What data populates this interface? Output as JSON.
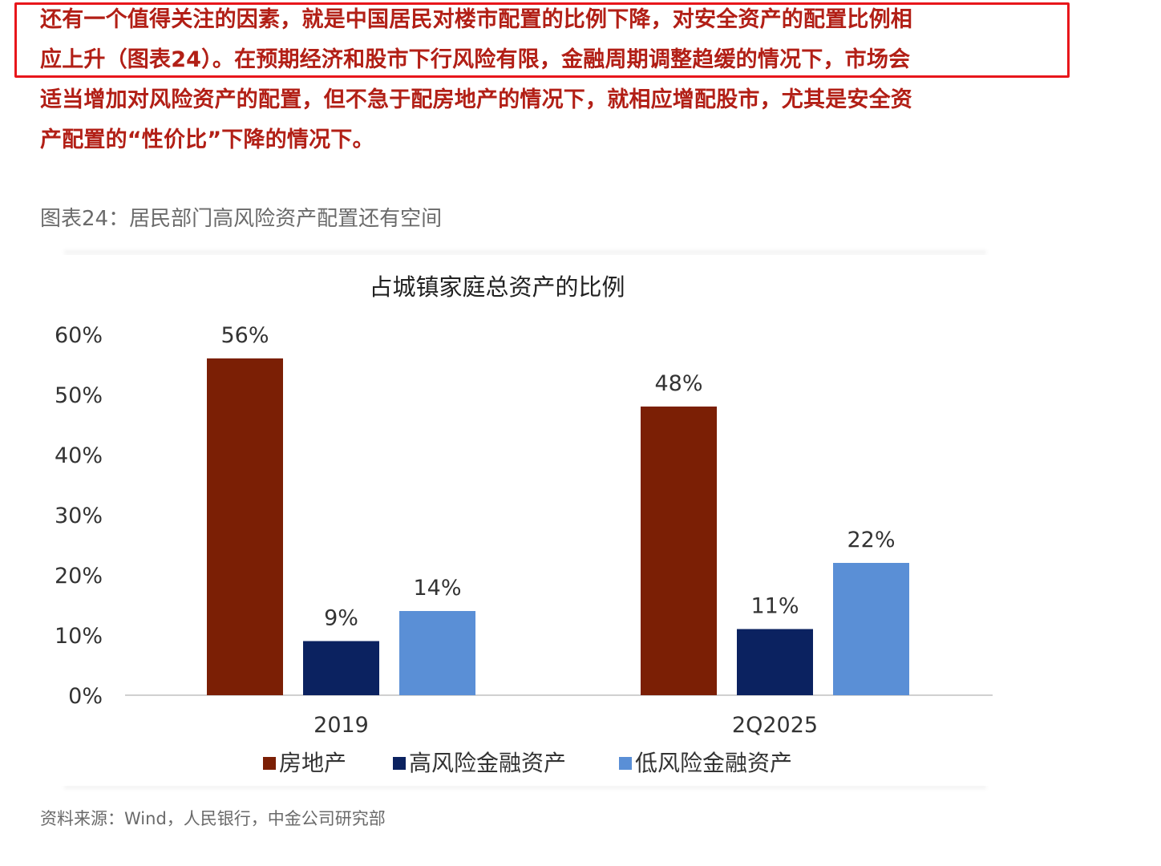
{
  "paragraph": {
    "lines": [
      "还有一个值得关注的因素，就是中国居民对楼市配置的比例下降，对安全资产的配置比例相",
      "应上升（图表24）。在预期经济和股市下行风险有限，金融周期调整趋缓的情况下，市场会",
      "适当增加对风险资产的配置，但不急于配房地产的情况下，就相应增配股市，尤其是安全资",
      "产配置的“性价比”下降的情况下。"
    ]
  },
  "figure": {
    "caption": "图表24：居民部门高风险资产配置还有空间",
    "source": "资料来源：Wind，人民银行，中金公司研究部"
  },
  "chart_data": {
    "type": "bar",
    "title": "占城镇家庭总资产的比例",
    "xlabel": "",
    "ylabel": "",
    "categories": [
      "2019",
      "2Q2025"
    ],
    "series": [
      {
        "name": "房地产",
        "values": [
          56,
          48
        ],
        "labels": [
          "56%",
          "48%"
        ],
        "color": "#7b1f05"
      },
      {
        "name": "高风险金融资产",
        "values": [
          9,
          11
        ],
        "labels": [
          "9%",
          "11%"
        ],
        "color": "#0b2260"
      },
      {
        "name": "低风险金融资产",
        "values": [
          14,
          22
        ],
        "labels": [
          "14%",
          "22%"
        ],
        "color": "#5a8fd6"
      }
    ],
    "ylim": [
      0,
      60
    ],
    "yticks": [
      "0%",
      "10%",
      "20%",
      "30%",
      "40%",
      "50%",
      "60%"
    ],
    "grid": false,
    "legend": "bottom"
  }
}
